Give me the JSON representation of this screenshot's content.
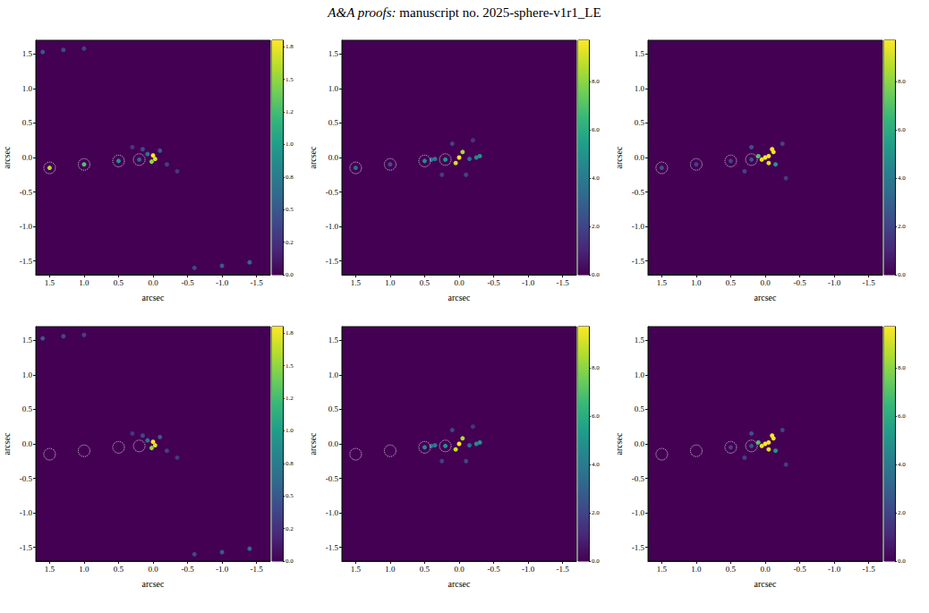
{
  "header": {
    "journal": "A&A proofs:",
    "manuscript": "manuscript no. 2025-sphere-v1r1_LE"
  },
  "chart_data": [
    {
      "type": "image",
      "xlabel": "arcsec",
      "ylabel": "arcsec",
      "xlim": [
        1.7,
        -1.7
      ],
      "ylim": [
        -1.7,
        1.7
      ],
      "xticks": [
        {
          "value": 1.5,
          "label": "1.5"
        },
        {
          "value": 1,
          "label": "1.0"
        },
        {
          "value": 0.5,
          "label": "0.5"
        },
        {
          "value": 0,
          "label": "0.0"
        },
        {
          "value": -0.5,
          "label": "-0.5"
        },
        {
          "value": -1,
          "label": "-1.0"
        },
        {
          "value": -1.5,
          "label": "-1.5"
        }
      ],
      "yticks": [
        {
          "value": -1.5,
          "label": "-1.5"
        },
        {
          "value": -1,
          "label": "-1.0"
        },
        {
          "value": -0.5,
          "label": "-0.5"
        },
        {
          "value": 0,
          "label": "0.0"
        },
        {
          "value": 0.5,
          "label": "0.5"
        },
        {
          "value": 1,
          "label": "1.0"
        },
        {
          "value": 1.5,
          "label": "1.5"
        }
      ],
      "colorbar": {
        "lim": [
          0,
          1.8
        ],
        "ticks": [
          {
            "value": 0,
            "label": "0.0"
          },
          {
            "value": 0.25,
            "label": "0.2"
          },
          {
            "value": 0.5,
            "label": "0.5"
          },
          {
            "value": 0.75,
            "label": "0.8"
          },
          {
            "value": 1,
            "label": "1.0"
          },
          {
            "value": 1.25,
            "label": "1.2"
          },
          {
            "value": 1.5,
            "label": "1.5"
          },
          {
            "value": 1.75,
            "label": "1.8"
          }
        ]
      },
      "circles": [
        [
          1.5,
          -0.15
        ],
        [
          1.0,
          -0.1
        ],
        [
          0.5,
          -0.05
        ],
        [
          0.2,
          -0.03
        ]
      ],
      "sources": [
        [
          1.5,
          -0.15,
          1.6
        ],
        [
          1.0,
          -0.1,
          1.3
        ],
        [
          0.5,
          -0.05,
          0.9
        ],
        [
          0.2,
          -0.03,
          0.6
        ],
        [
          0.0,
          0.03,
          1.8
        ],
        [
          -0.03,
          -0.02,
          1.7
        ],
        [
          0.02,
          -0.06,
          1.5
        ],
        [
          0.08,
          0.05,
          0.7
        ],
        [
          -0.1,
          0.1,
          0.5
        ],
        [
          0.15,
          0.12,
          0.4
        ],
        [
          -0.2,
          -0.1,
          0.35
        ],
        [
          0.3,
          0.15,
          0.3
        ],
        [
          -0.35,
          -0.2,
          0.3
        ],
        [
          1.6,
          1.53,
          0.5
        ],
        [
          1.3,
          1.56,
          0.4
        ],
        [
          1.0,
          1.58,
          0.35
        ],
        [
          -0.6,
          -1.6,
          0.4
        ],
        [
          -1.0,
          -1.57,
          0.5
        ],
        [
          -1.4,
          -1.52,
          0.6
        ]
      ]
    },
    {
      "type": "image",
      "xlabel": "arcsec",
      "ylabel": "arcsec",
      "xlim": [
        1.7,
        -1.7
      ],
      "ylim": [
        -1.7,
        1.7
      ],
      "xticks": [
        {
          "value": 1.5,
          "label": "1.5"
        },
        {
          "value": 1,
          "label": "1.0"
        },
        {
          "value": 0.5,
          "label": "0.5"
        },
        {
          "value": 0,
          "label": "0.0"
        },
        {
          "value": -0.5,
          "label": "-0.5"
        },
        {
          "value": -1,
          "label": "-1.0"
        },
        {
          "value": -1.5,
          "label": "-1.5"
        }
      ],
      "yticks": [
        {
          "value": -1.5,
          "label": "-1.5"
        },
        {
          "value": -1,
          "label": "-1.0"
        },
        {
          "value": -0.5,
          "label": "-0.5"
        },
        {
          "value": 0,
          "label": "0.0"
        },
        {
          "value": 0.5,
          "label": "0.5"
        },
        {
          "value": 1,
          "label": "1.0"
        },
        {
          "value": 1.5,
          "label": "1.5"
        }
      ],
      "colorbar": {
        "lim": [
          0,
          9.7
        ],
        "ticks": [
          {
            "value": 0,
            "label": "0.0"
          },
          {
            "value": 2,
            "label": "2.0"
          },
          {
            "value": 4,
            "label": "4.0"
          },
          {
            "value": 6,
            "label": "6.0"
          },
          {
            "value": 8,
            "label": "8.0"
          }
        ]
      },
      "circles": [
        [
          1.5,
          -0.15
        ],
        [
          1.0,
          -0.1
        ],
        [
          0.5,
          -0.05
        ],
        [
          0.2,
          -0.03
        ]
      ],
      "sources": [
        [
          1.5,
          -0.15,
          3.5
        ],
        [
          1.0,
          -0.1,
          2.5
        ],
        [
          0.5,
          -0.05,
          4.5
        ],
        [
          0.2,
          -0.03,
          5
        ],
        [
          0.0,
          0.0,
          9.7
        ],
        [
          0.05,
          -0.08,
          9
        ],
        [
          -0.05,
          0.08,
          8.5
        ],
        [
          0.4,
          -0.03,
          3.5
        ],
        [
          0.35,
          -0.02,
          4
        ],
        [
          -0.3,
          0.02,
          5
        ],
        [
          -0.25,
          0.0,
          4.5
        ],
        [
          -0.15,
          -0.02,
          3.5
        ],
        [
          0.1,
          0.2,
          2
        ],
        [
          -0.1,
          -0.25,
          2
        ],
        [
          0.25,
          -0.25,
          1.8
        ],
        [
          -0.2,
          0.25,
          1.5
        ]
      ]
    },
    {
      "type": "image",
      "xlabel": "arcsec",
      "ylabel": "arcsec",
      "xlim": [
        1.7,
        -1.7
      ],
      "ylim": [
        -1.7,
        1.7
      ],
      "xticks": [
        {
          "value": 1.5,
          "label": "1.5"
        },
        {
          "value": 1,
          "label": "1.0"
        },
        {
          "value": 0.5,
          "label": "0.5"
        },
        {
          "value": 0,
          "label": "0.0"
        },
        {
          "value": -0.5,
          "label": "-0.5"
        },
        {
          "value": -1,
          "label": "-1.0"
        },
        {
          "value": -1.5,
          "label": "-1.5"
        }
      ],
      "yticks": [
        {
          "value": -1.5,
          "label": "-1.5"
        },
        {
          "value": -1,
          "label": "-1.0"
        },
        {
          "value": -0.5,
          "label": "-0.5"
        },
        {
          "value": 0,
          "label": "0.0"
        },
        {
          "value": 0.5,
          "label": "0.5"
        },
        {
          "value": 1,
          "label": "1.0"
        },
        {
          "value": 1.5,
          "label": "1.5"
        }
      ],
      "colorbar": {
        "lim": [
          0,
          9.7
        ],
        "ticks": [
          {
            "value": 0,
            "label": "0.0"
          },
          {
            "value": 2,
            "label": "2.0"
          },
          {
            "value": 4,
            "label": "4.0"
          },
          {
            "value": 6,
            "label": "6.0"
          },
          {
            "value": 8,
            "label": "8.0"
          }
        ]
      },
      "circles": [
        [
          1.5,
          -0.15
        ],
        [
          1.0,
          -0.1
        ],
        [
          0.5,
          -0.05
        ],
        [
          0.2,
          -0.03
        ]
      ],
      "sources": [
        [
          1.5,
          -0.15,
          2.5
        ],
        [
          1.0,
          -0.1,
          2
        ],
        [
          0.5,
          -0.05,
          2
        ],
        [
          0.2,
          -0.03,
          2.5
        ],
        [
          0.0,
          0.0,
          9.7
        ],
        [
          -0.05,
          0.02,
          9.7
        ],
        [
          0.05,
          -0.03,
          9.5
        ],
        [
          -0.1,
          0.12,
          9.7
        ],
        [
          -0.12,
          0.08,
          9.6
        ],
        [
          -0.05,
          -0.08,
          9.2
        ],
        [
          0.1,
          0.02,
          7
        ],
        [
          -0.15,
          -0.1,
          5
        ],
        [
          0.2,
          0.15,
          2.5
        ],
        [
          -0.25,
          0.2,
          2
        ],
        [
          0.3,
          -0.2,
          2
        ],
        [
          -0.3,
          -0.3,
          1.8
        ]
      ]
    },
    {
      "type": "image",
      "xlabel": "arcsec",
      "ylabel": "arcsec",
      "xlim": [
        1.7,
        -1.7
      ],
      "ylim": [
        -1.7,
        1.7
      ],
      "xticks": [
        {
          "value": 1.5,
          "label": "1.5"
        },
        {
          "value": 1,
          "label": "1.0"
        },
        {
          "value": 0.5,
          "label": "0.5"
        },
        {
          "value": 0,
          "label": "0.0"
        },
        {
          "value": -0.5,
          "label": "-0.5"
        },
        {
          "value": -1,
          "label": "-1.0"
        },
        {
          "value": -1.5,
          "label": "-1.5"
        }
      ],
      "yticks": [
        {
          "value": -1.5,
          "label": "-1.5"
        },
        {
          "value": -1,
          "label": "-1.0"
        },
        {
          "value": -0.5,
          "label": "-0.5"
        },
        {
          "value": 0,
          "label": "0.0"
        },
        {
          "value": 0.5,
          "label": "0.5"
        },
        {
          "value": 1,
          "label": "1.0"
        },
        {
          "value": 1.5,
          "label": "1.5"
        }
      ],
      "colorbar": {
        "lim": [
          0,
          1.8
        ],
        "ticks": [
          {
            "value": 0,
            "label": "0.0"
          },
          {
            "value": 0.25,
            "label": "0.2"
          },
          {
            "value": 0.5,
            "label": "0.5"
          },
          {
            "value": 0.75,
            "label": "0.8"
          },
          {
            "value": 1,
            "label": "1.0"
          },
          {
            "value": 1.25,
            "label": "1.2"
          },
          {
            "value": 1.5,
            "label": "1.5"
          },
          {
            "value": 1.75,
            "label": "1.8"
          }
        ]
      },
      "circles": [
        [
          1.5,
          -0.15
        ],
        [
          1.0,
          -0.1
        ],
        [
          0.5,
          -0.05
        ],
        [
          0.2,
          -0.03
        ]
      ],
      "sources": [
        [
          0.0,
          0.03,
          1.8
        ],
        [
          -0.03,
          -0.02,
          1.7
        ],
        [
          0.02,
          -0.06,
          1.5
        ],
        [
          0.08,
          0.05,
          0.7
        ],
        [
          -0.1,
          0.1,
          0.5
        ],
        [
          0.15,
          0.12,
          0.4
        ],
        [
          -0.2,
          -0.1,
          0.35
        ],
        [
          0.3,
          0.15,
          0.3
        ],
        [
          -0.35,
          -0.2,
          0.3
        ],
        [
          1.6,
          1.53,
          0.5
        ],
        [
          1.3,
          1.56,
          0.4
        ],
        [
          1.0,
          1.58,
          0.35
        ],
        [
          -0.6,
          -1.6,
          0.4
        ],
        [
          -1.0,
          -1.57,
          0.5
        ],
        [
          -1.4,
          -1.52,
          0.6
        ]
      ]
    },
    {
      "type": "image",
      "xlabel": "arcsec",
      "ylabel": "arcsec",
      "xlim": [
        1.7,
        -1.7
      ],
      "ylim": [
        -1.7,
        1.7
      ],
      "xticks": [
        {
          "value": 1.5,
          "label": "1.5"
        },
        {
          "value": 1,
          "label": "1.0"
        },
        {
          "value": 0.5,
          "label": "0.5"
        },
        {
          "value": 0,
          "label": "0.0"
        },
        {
          "value": -0.5,
          "label": "-0.5"
        },
        {
          "value": -1,
          "label": "-1.0"
        },
        {
          "value": -1.5,
          "label": "-1.5"
        }
      ],
      "yticks": [
        {
          "value": -1.5,
          "label": "-1.5"
        },
        {
          "value": -1,
          "label": "-1.0"
        },
        {
          "value": -0.5,
          "label": "-0.5"
        },
        {
          "value": 0,
          "label": "0.0"
        },
        {
          "value": 0.5,
          "label": "0.5"
        },
        {
          "value": 1,
          "label": "1.0"
        },
        {
          "value": 1.5,
          "label": "1.5"
        }
      ],
      "colorbar": {
        "lim": [
          0,
          9.7
        ],
        "ticks": [
          {
            "value": 0,
            "label": "0.0"
          },
          {
            "value": 2,
            "label": "2.0"
          },
          {
            "value": 4,
            "label": "4.0"
          },
          {
            "value": 6,
            "label": "6.0"
          },
          {
            "value": 8,
            "label": "8.0"
          }
        ]
      },
      "circles": [
        [
          1.5,
          -0.15
        ],
        [
          1.0,
          -0.1
        ],
        [
          0.5,
          -0.05
        ],
        [
          0.2,
          -0.03
        ]
      ],
      "sources": [
        [
          0.5,
          -0.05,
          4.5
        ],
        [
          0.2,
          -0.03,
          5
        ],
        [
          0.0,
          0.0,
          9.7
        ],
        [
          0.05,
          -0.08,
          9
        ],
        [
          -0.05,
          0.08,
          8.5
        ],
        [
          0.4,
          -0.03,
          3.5
        ],
        [
          0.35,
          -0.02,
          4
        ],
        [
          -0.3,
          0.02,
          5
        ],
        [
          -0.25,
          0.0,
          4.5
        ],
        [
          -0.15,
          -0.02,
          3.5
        ],
        [
          0.1,
          0.2,
          2
        ],
        [
          -0.1,
          -0.25,
          2
        ],
        [
          0.25,
          -0.25,
          1.8
        ],
        [
          -0.2,
          0.25,
          1.5
        ]
      ]
    },
    {
      "type": "image",
      "xlabel": "arcsec",
      "ylabel": "arcsec",
      "xlim": [
        1.7,
        -1.7
      ],
      "ylim": [
        -1.7,
        1.7
      ],
      "xticks": [
        {
          "value": 1.5,
          "label": "1.5"
        },
        {
          "value": 1,
          "label": "1.0"
        },
        {
          "value": 0.5,
          "label": "0.5"
        },
        {
          "value": 0,
          "label": "0.0"
        },
        {
          "value": -0.5,
          "label": "-0.5"
        },
        {
          "value": -1,
          "label": "-1.0"
        },
        {
          "value": -1.5,
          "label": "-1.5"
        }
      ],
      "yticks": [
        {
          "value": -1.5,
          "label": "-1.5"
        },
        {
          "value": -1,
          "label": "-1.0"
        },
        {
          "value": -0.5,
          "label": "-0.5"
        },
        {
          "value": 0,
          "label": "0.0"
        },
        {
          "value": 0.5,
          "label": "0.5"
        },
        {
          "value": 1,
          "label": "1.0"
        },
        {
          "value": 1.5,
          "label": "1.5"
        }
      ],
      "colorbar": {
        "lim": [
          0,
          9.7
        ],
        "ticks": [
          {
            "value": 0,
            "label": "0.0"
          },
          {
            "value": 2,
            "label": "2.0"
          },
          {
            "value": 4,
            "label": "4.0"
          },
          {
            "value": 6,
            "label": "6.0"
          },
          {
            "value": 8,
            "label": "8.0"
          }
        ]
      },
      "circles": [
        [
          1.5,
          -0.15
        ],
        [
          1.0,
          -0.1
        ],
        [
          0.5,
          -0.05
        ],
        [
          0.2,
          -0.03
        ]
      ],
      "sources": [
        [
          0.5,
          -0.05,
          2
        ],
        [
          0.2,
          -0.03,
          2.5
        ],
        [
          0.0,
          0.0,
          9.7
        ],
        [
          -0.05,
          0.02,
          9.7
        ],
        [
          0.05,
          -0.03,
          9.5
        ],
        [
          -0.1,
          0.12,
          9.7
        ],
        [
          -0.12,
          0.08,
          9.6
        ],
        [
          -0.05,
          -0.08,
          9.2
        ],
        [
          0.1,
          0.02,
          7
        ],
        [
          -0.15,
          -0.1,
          5
        ],
        [
          0.2,
          0.15,
          2.5
        ],
        [
          -0.25,
          0.2,
          2
        ],
        [
          0.3,
          -0.2,
          2
        ],
        [
          -0.3,
          -0.3,
          1.8
        ]
      ]
    }
  ]
}
